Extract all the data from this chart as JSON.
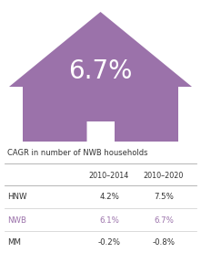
{
  "house_color": "#9b72aa",
  "main_value": "6.7%",
  "main_value_color": "#ffffff",
  "subtitle": "CAGR in number of NWB households",
  "subtitle_color": "#333333",
  "col_headers": [
    "2010–2014",
    "2010–2020"
  ],
  "rows": [
    {
      "label": "HNW",
      "values": [
        "4.2%",
        "7.5%"
      ],
      "label_color": "#333333",
      "value_colors": [
        "#333333",
        "#333333"
      ]
    },
    {
      "label": "NWB",
      "values": [
        "6.1%",
        "6.7%"
      ],
      "label_color": "#9b72aa",
      "value_colors": [
        "#9b72aa",
        "#9b72aa"
      ]
    },
    {
      "label": "MM",
      "values": [
        "-0.2%",
        "-0.8%"
      ],
      "label_color": "#333333",
      "value_colors": [
        "#333333",
        "#333333"
      ]
    }
  ],
  "background_color": "#ffffff",
  "figsize": [
    2.21,
    2.88
  ],
  "dpi": 100
}
